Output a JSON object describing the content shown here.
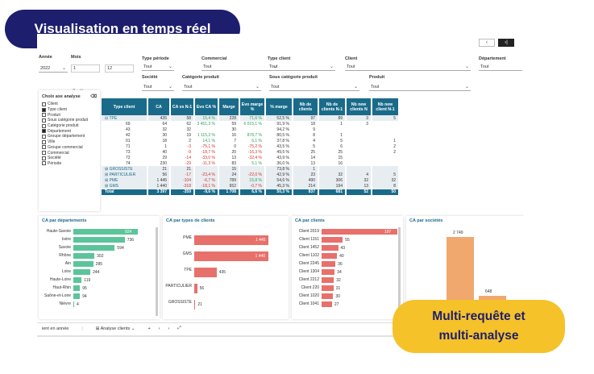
{
  "badges": {
    "top": "Visualisation en temps réel",
    "bottom_line1": "Multi-requête et",
    "bottom_line2": "multi-analyse"
  },
  "topbar": {
    "btn_left": "‹",
    "btn_right": "‹|"
  },
  "filters": {
    "annee": {
      "label": "Année",
      "value": "2022"
    },
    "mois": {
      "label": "Mois",
      "value_from": "1",
      "value_to": "12"
    },
    "type_periode": {
      "label": "Type période",
      "value": "Tout"
    },
    "commercial": {
      "label": "Commercial",
      "value": "Tout"
    },
    "type_client": {
      "label": "Type client",
      "value": "Tout"
    },
    "client": {
      "label": "Client",
      "value": "Tout"
    },
    "departement": {
      "label": "Département",
      "value": "Tout"
    },
    "societe": {
      "label": "Société",
      "value": "Tout"
    },
    "categorie_produit": {
      "label": "Catégorie produit",
      "value": "Tout"
    },
    "sous_categorie": {
      "label": "Sous catégorie produit",
      "value": "Tout"
    },
    "produit": {
      "label": "Produit",
      "value": "Tout"
    }
  },
  "sidebar": {
    "title": "Choix axe analyse",
    "items": [
      {
        "label": "Client",
        "checked": false
      },
      {
        "label": "Type client",
        "checked": true
      },
      {
        "label": "Produit",
        "checked": false
      },
      {
        "label": "Sous catégorie produit",
        "checked": false
      },
      {
        "label": "Catégorie produit",
        "checked": false
      },
      {
        "label": "Département",
        "checked": true
      },
      {
        "label": "Groupe département",
        "checked": false
      },
      {
        "label": "Ville",
        "checked": false
      },
      {
        "label": "Groupe commercial",
        "checked": false
      },
      {
        "label": "Commercial",
        "checked": false
      },
      {
        "label": "Société",
        "checked": false
      },
      {
        "label": "Période",
        "checked": false
      }
    ]
  },
  "table": {
    "headers": [
      "Type client",
      "CA",
      "CA vs N-1",
      "Evo CA %",
      "Marge",
      "Evo marge %",
      "% marge",
      "Nb de clients",
      "Nb de clients N-1",
      "Nb new clients N",
      "Nb new client N-1"
    ],
    "rows": [
      {
        "kind": "grp",
        "cells": [
          "⊟ TPE",
          "435",
          "58",
          "15,4 %",
          "228",
          "71,6 %",
          "52,5 %",
          "97",
          "89",
          "3",
          "5"
        ],
        "cls": [
          "",
          "",
          "",
          "pos",
          "",
          "pos",
          "",
          "",
          "",
          "",
          ""
        ]
      },
      {
        "kind": "sub",
        "cells": [
          "69",
          "64",
          "62",
          "3 451,3 %",
          "59",
          "6 015,1 %",
          "91,9 %",
          "18",
          "1",
          "3",
          ""
        ],
        "cls": [
          "",
          "",
          "",
          "pos",
          "",
          "pos",
          "",
          "",
          "",
          "",
          ""
        ]
      },
      {
        "kind": "sub",
        "cells": [
          "43",
          "32",
          "32",
          "",
          "30",
          "",
          "94,2 %",
          "9",
          "",
          "",
          ""
        ],
        "cls": [
          "",
          "",
          "",
          "",
          "",
          "",
          "",
          "",
          "",
          "",
          ""
        ]
      },
      {
        "kind": "sub",
        "cells": [
          "42",
          "30",
          "19",
          "1 115,3 %",
          "16",
          "878,7 %",
          "80,5 %",
          "8",
          "1",
          "",
          ""
        ],
        "cls": [
          "",
          "",
          "",
          "pos",
          "",
          "pos",
          "",
          "",
          "",
          "",
          ""
        ]
      },
      {
        "kind": "sub",
        "cells": [
          "01",
          "18",
          "2",
          "14,1 %",
          "7",
          "6,1 %",
          "37,8 %",
          "4",
          "5",
          "",
          "1"
        ],
        "cls": [
          "",
          "",
          "",
          "pos",
          "",
          "pos",
          "",
          "",
          "",
          "",
          ""
        ]
      },
      {
        "kind": "sub",
        "cells": [
          "71",
          "1",
          "-3",
          "-75,1 %",
          "0",
          "-75,2 %",
          "43,5 %",
          "5",
          "6",
          "",
          "2"
        ],
        "cls": [
          "",
          "",
          "neg",
          "neg",
          "",
          "neg",
          "",
          "",
          "",
          "",
          ""
        ]
      },
      {
        "kind": "sub",
        "cells": [
          "73",
          "40",
          "-9",
          "-18,7 %",
          "20",
          "-16,3 %",
          "49,5 %",
          "25",
          "25",
          "",
          "2"
        ],
        "cls": [
          "",
          "",
          "neg",
          "neg",
          "",
          "neg",
          "",
          "",
          "",
          "",
          ""
        ]
      },
      {
        "kind": "sub",
        "cells": [
          "72",
          "29",
          "-14",
          "-33,0 %",
          "13",
          "-32,4 %",
          "43,9 %",
          "14",
          "15",
          "",
          ""
        ],
        "cls": [
          "",
          "",
          "neg",
          "neg",
          "",
          "neg",
          "",
          "",
          "",
          "",
          ""
        ]
      },
      {
        "kind": "sub",
        "cells": [
          "74",
          "230",
          "-29",
          "-11,3 %",
          "83",
          "5,1 %",
          "36,0 %",
          "13",
          "16",
          "",
          ""
        ],
        "cls": [
          "",
          "",
          "neg",
          "neg",
          "",
          "pos",
          "",
          "",
          "",
          "",
          ""
        ]
      },
      {
        "kind": "grp",
        "cells": [
          "⊞ GROSSISTE",
          "21",
          "21",
          "",
          "15",
          "",
          "73,8 %",
          "1",
          "",
          "",
          ""
        ],
        "cls": [
          "",
          "",
          "",
          "",
          "",
          "",
          "",
          "",
          "",
          "",
          ""
        ]
      },
      {
        "kind": "grp",
        "cells": [
          "⊞ PARTICULIER",
          "56",
          "-17",
          "-23,4 %",
          "24",
          "-22,0 %",
          "42,9 %",
          "23",
          "32",
          "4",
          "5"
        ],
        "cls": [
          "",
          "",
          "neg",
          "neg",
          "",
          "neg",
          "",
          "",
          "",
          "",
          ""
        ]
      },
      {
        "kind": "grp",
        "cells": [
          "⊞ PME",
          "1 445",
          "-104",
          "-6,7 %",
          "789",
          "15,8 %",
          "54,6 %",
          "490",
          "306",
          "32",
          "32"
        ],
        "cls": [
          "",
          "",
          "neg",
          "neg",
          "",
          "pos",
          "",
          "",
          "",
          "",
          ""
        ]
      },
      {
        "kind": "grp",
        "cells": [
          "⊞ GMS",
          "1 440",
          "-318",
          "-18,1 %",
          "652",
          "-0,7 %",
          "45,3 %",
          "214",
          "194",
          "13",
          "8"
        ],
        "cls": [
          "",
          "",
          "neg",
          "neg",
          "",
          "neg",
          "",
          "",
          "",
          "",
          ""
        ]
      },
      {
        "kind": "total",
        "cells": [
          "Total",
          "3 397",
          "-359",
          "-9,6 %",
          "1 708",
          "6,6 %",
          "50,3 %",
          "837",
          "681",
          "52",
          "50"
        ],
        "cls": [
          "",
          "",
          "",
          "",
          "",
          "",
          "",
          "",
          "",
          "",
          ""
        ]
      }
    ]
  },
  "chart_data": [
    {
      "type": "bar",
      "title": "CA par départements",
      "categories": [
        "Haute-Savoie",
        "Isère",
        "Savoie",
        "Rhône",
        "Ain",
        "Loire",
        "Haute-Loire",
        "Haut-Rhin",
        "Saône-et-Loire",
        "Nièvre"
      ],
      "values": [
        924,
        736,
        594,
        302,
        285,
        244,
        119,
        95,
        94,
        4
      ],
      "color": "#5cc49a"
    },
    {
      "type": "bar",
      "title": "CA par types de clients",
      "categories": [
        "PME",
        "GMS",
        "TPE",
        "PARTICULIER",
        "GROSSISTE"
      ],
      "values": [
        1445,
        1440,
        435,
        56,
        21
      ],
      "color": "#e8706b"
    },
    {
      "type": "bar",
      "title": "CA par clients",
      "categories": [
        "Client 2019",
        "Client 1151",
        "Client 1452",
        "Client 1102",
        "Client 2245",
        "Client 1304",
        "Client 2212",
        "Client 220",
        "Client 1020",
        "Client 1041"
      ],
      "values": [
        197,
        55,
        43,
        40,
        36,
        34,
        32,
        31,
        30,
        27
      ],
      "color": "#e8706b"
    },
    {
      "type": "bar",
      "title": "CA par sociétés",
      "categories": [
        "",
        ""
      ],
      "values": [
        2749,
        648
      ],
      "color": "#f0a86e"
    }
  ],
  "bottombar": {
    "tab1": "ient en année",
    "tab2": "Analyse clients"
  }
}
